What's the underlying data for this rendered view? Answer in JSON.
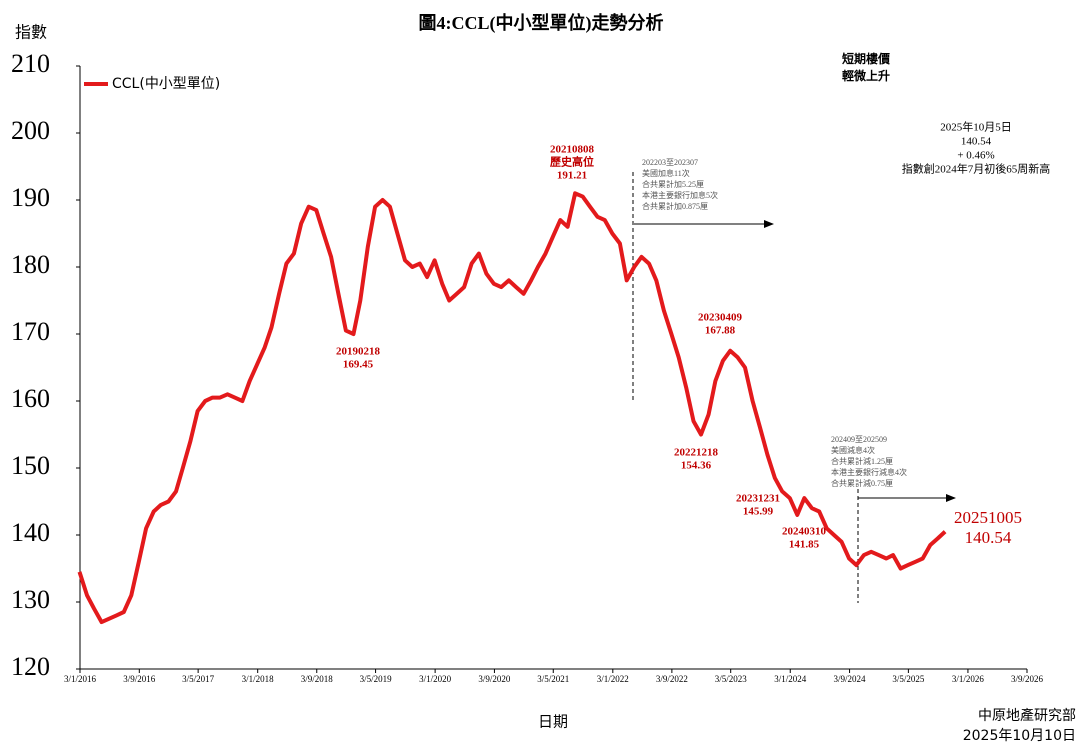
{
  "chart_data": {
    "type": "line",
    "title": "圖4:CCL(中小型單位)走勢分析",
    "y_label": "指數",
    "x_label": "日期",
    "source": [
      "中原地產研究部",
      "2025年10月10日"
    ],
    "x": [
      "2016-01-01",
      "2016-02-01",
      "2016-03-01",
      "2016-04-01",
      "2016-05-01",
      "2016-06-01",
      "2016-07-01",
      "2016-08-01",
      "2016-09-01",
      "2016-10-01",
      "2016-11-01",
      "2016-12-01",
      "2017-01-01",
      "2017-02-01",
      "2017-03-01",
      "2017-04-01",
      "2017-05-01",
      "2017-06-01",
      "2017-07-01",
      "2017-08-01",
      "2017-09-01",
      "2017-10-01",
      "2017-11-01",
      "2017-12-01",
      "2018-01-01",
      "2018-02-01",
      "2018-03-01",
      "2018-04-01",
      "2018-05-01",
      "2018-06-01",
      "2018-07-01",
      "2018-08-01",
      "2018-09-01",
      "2018-10-01",
      "2018-11-01",
      "2018-12-01",
      "2019-01-01",
      "2019-02-01",
      "2019-03-01",
      "2019-04-01",
      "2019-05-01",
      "2019-06-01",
      "2019-07-01",
      "2019-08-01",
      "2019-09-01",
      "2019-10-01",
      "2019-11-01",
      "2019-12-01",
      "2020-01-01",
      "2020-02-01",
      "2020-03-01",
      "2020-04-01",
      "2020-05-01",
      "2020-06-01",
      "2020-07-01",
      "2020-08-01",
      "2020-09-01",
      "2020-10-01",
      "2020-11-01",
      "2020-12-01",
      "2021-01-01",
      "2021-02-01",
      "2021-03-01",
      "2021-04-01",
      "2021-05-01",
      "2021-06-01",
      "2021-07-01",
      "2021-08-01",
      "2021-09-01",
      "2021-10-01",
      "2021-11-01",
      "2021-12-01",
      "2022-01-01",
      "2022-02-01",
      "2022-03-01",
      "2022-04-01",
      "2022-05-01",
      "2022-06-01",
      "2022-07-01",
      "2022-08-01",
      "2022-09-01",
      "2022-10-01",
      "2022-11-01",
      "2022-12-01",
      "2023-01-01",
      "2023-02-01",
      "2023-03-01",
      "2023-04-01",
      "2023-05-01",
      "2023-06-01",
      "2023-07-01",
      "2023-08-01",
      "2023-09-01",
      "2023-10-01",
      "2023-11-01",
      "2023-12-01",
      "2024-01-01",
      "2024-02-01",
      "2024-03-01",
      "2024-04-01",
      "2024-05-01",
      "2024-06-01",
      "2024-07-01",
      "2024-08-01",
      "2024-09-01",
      "2024-10-01",
      "2024-11-01",
      "2024-12-01",
      "2025-01-01",
      "2025-02-01",
      "2025-03-01",
      "2025-04-01",
      "2025-05-01",
      "2025-06-01",
      "2025-07-01",
      "2025-08-01",
      "2025-09-01",
      "2025-10-01"
    ],
    "series": [
      {
        "name": "CCL(中小型單位)",
        "color": "#e31a1c",
        "values": [
          134.5,
          131,
          129,
          127,
          127.5,
          128,
          128.5,
          131,
          136,
          141,
          143.5,
          144.5,
          145,
          146.5,
          150,
          154,
          158.5,
          160,
          160.5,
          160.5,
          161,
          160.5,
          160,
          163,
          165.5,
          168,
          171,
          176,
          180.5,
          182,
          186.5,
          189,
          188.5,
          185,
          181.5,
          176,
          170.5,
          170,
          175,
          183,
          189,
          190,
          189,
          185,
          181,
          180,
          180.5,
          178.5,
          181,
          177.5,
          175,
          176,
          177,
          180.5,
          182,
          179,
          177.5,
          177,
          178,
          177,
          176,
          178,
          180,
          182,
          184.5,
          187,
          186,
          191,
          190.5,
          189,
          187.5,
          187,
          185,
          183.5,
          178,
          180,
          181.5,
          180.5,
          178,
          173.5,
          170,
          166.5,
          162,
          157,
          155,
          158,
          163,
          166,
          167.5,
          166.5,
          165,
          160,
          156,
          152,
          148.5,
          146.5,
          145.5,
          143,
          145.5,
          144,
          143.5,
          141,
          140,
          139,
          136.5,
          135.5,
          137,
          137.5,
          137,
          136.5,
          137,
          135,
          135.5,
          136,
          136.5,
          138.5,
          139.5,
          140.5
        ]
      }
    ],
    "xlim": [
      "2016-01-03",
      "2026-09-03"
    ],
    "xticks": [
      {
        "value": "2016-01-03",
        "label": "3/1/2016"
      },
      {
        "value": "2016-09-03",
        "label": "3/9/2016"
      },
      {
        "value": "2017-05-03",
        "label": "3/5/2017"
      },
      {
        "value": "2018-01-03",
        "label": "3/1/2018"
      },
      {
        "value": "2018-09-03",
        "label": "3/9/2018"
      },
      {
        "value": "2019-05-03",
        "label": "3/5/2019"
      },
      {
        "value": "2020-01-03",
        "label": "3/1/2020"
      },
      {
        "value": "2020-09-03",
        "label": "3/9/2020"
      },
      {
        "value": "2021-05-03",
        "label": "3/5/2021"
      },
      {
        "value": "2022-01-03",
        "label": "3/1/2022"
      },
      {
        "value": "2022-09-03",
        "label": "3/9/2022"
      },
      {
        "value": "2023-05-03",
        "label": "3/5/2023"
      },
      {
        "value": "2024-01-03",
        "label": "3/1/2024"
      },
      {
        "value": "2024-09-03",
        "label": "3/9/2024"
      },
      {
        "value": "2025-05-03",
        "label": "3/5/2025"
      },
      {
        "value": "2026-01-03",
        "label": "3/1/2026"
      },
      {
        "value": "2026-09-03",
        "label": "3/9/2026"
      }
    ],
    "ylim": [
      120,
      210
    ],
    "yticks": [
      120,
      130,
      140,
      150,
      160,
      170,
      180,
      190,
      200,
      210
    ],
    "grid": false,
    "legend": "top-left",
    "annotations": [
      {
        "lines": [
          "短期樓價",
          "輕微上升"
        ]
      },
      {
        "lines": [
          "2025年10月5日",
          "140.54",
          "+ 0.46%",
          "指數創2024年7月初後65周新高"
        ]
      },
      {
        "lines": [
          "20210808",
          "歷史高位",
          "191.21"
        ]
      },
      {
        "lines": [
          "202203至202307",
          "美國加息11次",
          "合共累計加5.25厘",
          "本港主要銀行加息5次",
          "合共累計加0.875厘"
        ]
      },
      {
        "lines": [
          "20190218",
          "169.45"
        ]
      },
      {
        "lines": [
          "20230409",
          "167.88"
        ]
      },
      {
        "lines": [
          "20221218",
          "154.36"
        ]
      },
      {
        "lines": [
          "20231231",
          "145.99"
        ]
      },
      {
        "lines": [
          "20240310",
          "141.85"
        ]
      },
      {
        "lines": [
          "202409至202509",
          "美國減息4次",
          "合共累計減1.25厘",
          "本港主要銀行減息4次",
          "合共累計減0.75厘"
        ]
      },
      {
        "lines": [
          "20251005",
          "140.54"
        ]
      }
    ]
  }
}
